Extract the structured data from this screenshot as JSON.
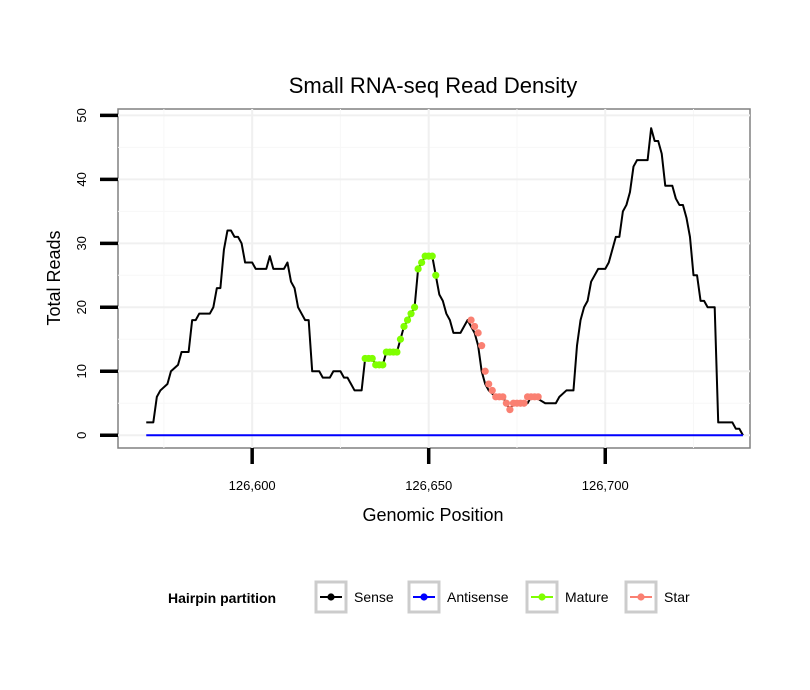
{
  "chart_data": {
    "type": "line",
    "title": "Small RNA-seq Read Density",
    "xlabel": "Genomic Position",
    "ylabel": "Total Reads",
    "xlim": [
      126562,
      126741
    ],
    "ylim": [
      -2,
      51
    ],
    "x_ticks": [
      {
        "value": 126600,
        "label": "126,600"
      },
      {
        "value": 126650,
        "label": "126,650"
      },
      {
        "value": 126700,
        "label": "126,700"
      }
    ],
    "y_ticks": [
      {
        "value": 0,
        "label": "0"
      },
      {
        "value": 10,
        "label": "10"
      },
      {
        "value": 20,
        "label": "20"
      },
      {
        "value": 30,
        "label": "30"
      },
      {
        "value": 40,
        "label": "40"
      },
      {
        "value": 50,
        "label": "50"
      }
    ],
    "legend": {
      "title": "Hairpin partition",
      "position": "bottom",
      "entries": [
        {
          "name": "Sense",
          "color": "#000000"
        },
        {
          "name": "Antisense",
          "color": "#0000ff"
        },
        {
          "name": "Mature",
          "color": "#7fff00"
        },
        {
          "name": "Star",
          "color": "#fa8072"
        }
      ]
    },
    "series": [
      {
        "name": "Sense",
        "color": "#000000",
        "markers": false,
        "points": [
          [
            126570,
            2
          ],
          [
            126572,
            2
          ],
          [
            126573,
            6
          ],
          [
            126574,
            7
          ],
          [
            126576,
            8
          ],
          [
            126577,
            10
          ],
          [
            126579,
            11
          ],
          [
            126580,
            13
          ],
          [
            126582,
            13
          ],
          [
            126583,
            18
          ],
          [
            126584,
            18
          ],
          [
            126585,
            19
          ],
          [
            126588,
            19
          ],
          [
            126589,
            20
          ],
          [
            126590,
            23
          ],
          [
            126591,
            23
          ],
          [
            126592,
            29
          ],
          [
            126593,
            32
          ],
          [
            126594,
            32
          ],
          [
            126595,
            31
          ],
          [
            126596,
            31
          ],
          [
            126597,
            30
          ],
          [
            126598,
            27
          ],
          [
            126600,
            27
          ],
          [
            126601,
            26
          ],
          [
            126604,
            26
          ],
          [
            126605,
            28
          ],
          [
            126606,
            26
          ],
          [
            126609,
            26
          ],
          [
            126610,
            27
          ],
          [
            126611,
            24
          ],
          [
            126612,
            23
          ],
          [
            126613,
            20
          ],
          [
            126614,
            19
          ],
          [
            126615,
            18
          ],
          [
            126616,
            18
          ],
          [
            126617,
            10
          ],
          [
            126619,
            10
          ],
          [
            126620,
            9
          ],
          [
            126622,
            9
          ],
          [
            126623,
            10
          ],
          [
            126625,
            10
          ],
          [
            126626,
            9
          ],
          [
            126627,
            9
          ],
          [
            126628,
            8
          ],
          [
            126629,
            7
          ],
          [
            126631,
            7
          ],
          [
            126632,
            12
          ],
          [
            126634,
            12
          ],
          [
            126635,
            11
          ],
          [
            126637,
            11
          ],
          [
            126638,
            13
          ],
          [
            126641,
            13
          ],
          [
            126642,
            15
          ],
          [
            126643,
            17
          ],
          [
            126644,
            18
          ],
          [
            126645,
            19
          ],
          [
            126646,
            20
          ],
          [
            126647,
            26
          ],
          [
            126648,
            27
          ],
          [
            126649,
            28
          ],
          [
            126651,
            28
          ],
          [
            126652,
            25
          ],
          [
            126653,
            22
          ],
          [
            126654,
            21
          ],
          [
            126655,
            19
          ],
          [
            126656,
            18
          ],
          [
            126657,
            16
          ],
          [
            126659,
            16
          ],
          [
            126660,
            17
          ],
          [
            126661,
            18
          ],
          [
            126662,
            17
          ],
          [
            126663,
            16
          ],
          [
            126664,
            14
          ],
          [
            126665,
            10
          ],
          [
            126666,
            8
          ],
          [
            126667,
            7
          ],
          [
            126669,
            6
          ],
          [
            126671,
            6
          ],
          [
            126672,
            5
          ],
          [
            126673,
            4
          ],
          [
            126674,
            5
          ],
          [
            126678,
            5
          ],
          [
            126679,
            6
          ],
          [
            126680,
            6
          ],
          [
            126683,
            5
          ],
          [
            126686,
            5
          ],
          [
            126687,
            6
          ],
          [
            126689,
            7
          ],
          [
            126691,
            7
          ],
          [
            126692,
            14
          ],
          [
            126693,
            18
          ],
          [
            126694,
            20
          ],
          [
            126695,
            21
          ],
          [
            126696,
            24
          ],
          [
            126697,
            25
          ],
          [
            126698,
            26
          ],
          [
            126700,
            26
          ],
          [
            126701,
            27
          ],
          [
            126702,
            29
          ],
          [
            126703,
            31
          ],
          [
            126704,
            31
          ],
          [
            126705,
            35
          ],
          [
            126706,
            36
          ],
          [
            126707,
            38
          ],
          [
            126708,
            42
          ],
          [
            126709,
            43
          ],
          [
            126712,
            43
          ],
          [
            126713,
            48
          ],
          [
            126714,
            46
          ],
          [
            126715,
            46
          ],
          [
            126716,
            44
          ],
          [
            126717,
            39
          ],
          [
            126719,
            39
          ],
          [
            126720,
            37
          ],
          [
            126721,
            36
          ],
          [
            126722,
            36
          ],
          [
            126723,
            34
          ],
          [
            126724,
            31
          ],
          [
            126725,
            25
          ],
          [
            126726,
            25
          ],
          [
            126727,
            21
          ],
          [
            126728,
            21
          ],
          [
            126729,
            20
          ],
          [
            126731,
            20
          ],
          [
            126732,
            2
          ],
          [
            126736,
            2
          ],
          [
            126737,
            1
          ],
          [
            126738,
            1
          ],
          [
            126739,
            0
          ]
        ]
      },
      {
        "name": "Antisense",
        "color": "#0000ff",
        "markers": false,
        "points": [
          [
            126570,
            0
          ],
          [
            126739,
            0
          ]
        ]
      },
      {
        "name": "Mature",
        "color": "#7fff00",
        "markers": true,
        "points": [
          [
            126632,
            12
          ],
          [
            126633,
            12
          ],
          [
            126634,
            12
          ],
          [
            126635,
            11
          ],
          [
            126636,
            11
          ],
          [
            126637,
            11
          ],
          [
            126638,
            13
          ],
          [
            126639,
            13
          ],
          [
            126640,
            13
          ],
          [
            126641,
            13
          ],
          [
            126642,
            15
          ],
          [
            126643,
            17
          ],
          [
            126644,
            18
          ],
          [
            126645,
            19
          ],
          [
            126646,
            20
          ],
          [
            126647,
            26
          ],
          [
            126648,
            27
          ],
          [
            126649,
            28
          ],
          [
            126650,
            28
          ],
          [
            126651,
            28
          ],
          [
            126652,
            25
          ]
        ]
      },
      {
        "name": "Star",
        "color": "#fa8072",
        "markers": true,
        "points": [
          [
            126662,
            18
          ],
          [
            126663,
            17
          ],
          [
            126664,
            16
          ],
          [
            126665,
            14
          ],
          [
            126666,
            10
          ],
          [
            126667,
            8
          ],
          [
            126668,
            7
          ],
          [
            126669,
            6
          ],
          [
            126670,
            6
          ],
          [
            126671,
            6
          ],
          [
            126672,
            5
          ],
          [
            126673,
            4
          ],
          [
            126674,
            5
          ],
          [
            126675,
            5
          ],
          [
            126676,
            5
          ],
          [
            126677,
            5
          ],
          [
            126678,
            6
          ],
          [
            126679,
            6
          ],
          [
            126680,
            6
          ],
          [
            126681,
            6
          ]
        ]
      }
    ]
  }
}
